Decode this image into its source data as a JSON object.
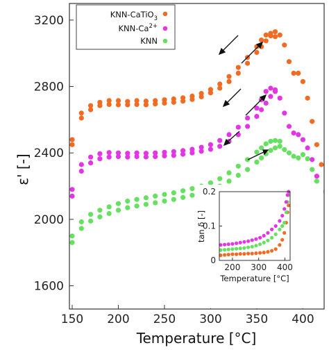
{
  "chart_data": [
    {
      "type": "scatter",
      "xlabel": "Temperature [°C]",
      "ylabel": "ε' [-]",
      "xlim": [
        147,
        423
      ],
      "ylim": [
        1460,
        3300
      ],
      "xticks": [
        "150",
        "200",
        "250",
        "300",
        "350",
        "400"
      ],
      "yticks": [
        "1600",
        "2000",
        "2400",
        "2800",
        "3200"
      ],
      "grid": false,
      "legend_position": "top-left",
      "series": [
        {
          "name": "KNN-CaTiO",
          "name_sub": "3",
          "name_sup": "",
          "color": "#f26b22",
          "heating": [
            [
              150,
              2450
            ],
            [
              160,
              2610
            ],
            [
              170,
              2660
            ],
            [
              180,
              2685
            ],
            [
              190,
              2692
            ],
            [
              200,
              2690
            ],
            [
              210,
              2690
            ],
            [
              220,
              2692
            ],
            [
              230,
              2690
            ],
            [
              240,
              2695
            ],
            [
              250,
              2700
            ],
            [
              260,
              2705
            ],
            [
              270,
              2712
            ],
            [
              280,
              2722
            ],
            [
              290,
              2738
            ],
            [
              300,
              2762
            ],
            [
              310,
              2790
            ],
            [
              320,
              2830
            ],
            [
              330,
              2880
            ],
            [
              340,
              2940
            ],
            [
              350,
              3005
            ],
            [
              355,
              3040
            ],
            [
              360,
              3075
            ],
            [
              365,
              3105
            ],
            [
              370,
              3130
            ],
            [
              375,
              3110
            ],
            [
              380,
              3050
            ],
            [
              385,
              2950
            ],
            [
              390,
              2880
            ],
            [
              395,
              2880
            ],
            [
              400,
              2830
            ],
            [
              405,
              2730
            ],
            [
              410,
              2590
            ],
            [
              415,
              2450
            ],
            [
              420,
              2330
            ]
          ],
          "cooling": [
            [
              150,
              2480
            ],
            [
              160,
              2640
            ],
            [
              170,
              2685
            ],
            [
              180,
              2705
            ],
            [
              190,
              2715
            ],
            [
              200,
              2715
            ],
            [
              210,
              2710
            ],
            [
              220,
              2715
            ],
            [
              230,
              2712
            ],
            [
              240,
              2715
            ],
            [
              250,
              2720
            ],
            [
              260,
              2725
            ],
            [
              270,
              2732
            ],
            [
              280,
              2742
            ],
            [
              290,
              2758
            ],
            [
              300,
              2782
            ],
            [
              310,
              2815
            ],
            [
              320,
              2860
            ],
            [
              330,
              2915
            ],
            [
              340,
              2975
            ],
            [
              350,
              3040
            ],
            [
              355,
              3080
            ],
            [
              360,
              3110
            ],
            [
              365,
              3120
            ],
            [
              370,
              3100
            ]
          ]
        },
        {
          "name": "KNN-Ca",
          "name_sub": "",
          "name_sup": "2+",
          "color": "#e335e6",
          "heating": [
            [
              150,
              2140
            ],
            [
              160,
              2290
            ],
            [
              170,
              2340
            ],
            [
              180,
              2365
            ],
            [
              190,
              2375
            ],
            [
              200,
              2378
            ],
            [
              210,
              2375
            ],
            [
              220,
              2378
            ],
            [
              230,
              2376
            ],
            [
              240,
              2378
            ],
            [
              250,
              2382
            ],
            [
              260,
              2385
            ],
            [
              270,
              2392
            ],
            [
              280,
              2400
            ],
            [
              290,
              2410
            ],
            [
              300,
              2422
            ],
            [
              310,
              2440
            ],
            [
              320,
              2470
            ],
            [
              330,
              2510
            ],
            [
              340,
              2560
            ],
            [
              350,
              2620
            ],
            [
              355,
              2660
            ],
            [
              360,
              2700
            ],
            [
              365,
              2740
            ],
            [
              370,
              2770
            ],
            [
              375,
              2730
            ],
            [
              380,
              2640
            ],
            [
              385,
              2560
            ],
            [
              390,
              2520
            ],
            [
              395,
              2510
            ],
            [
              400,
              2480
            ],
            [
              405,
              2430
            ],
            [
              410,
              2360
            ],
            [
              415,
              2260
            ],
            [
              420,
              2170
            ]
          ],
          "cooling": [
            [
              150,
              2180
            ],
            [
              160,
              2330
            ],
            [
              170,
              2375
            ],
            [
              180,
              2395
            ],
            [
              190,
              2402
            ],
            [
              200,
              2400
            ],
            [
              210,
              2398
            ],
            [
              220,
              2400
            ],
            [
              230,
              2398
            ],
            [
              240,
              2400
            ],
            [
              250,
              2404
            ],
            [
              260,
              2408
            ],
            [
              270,
              2414
            ],
            [
              280,
              2422
            ],
            [
              290,
              2434
            ],
            [
              300,
              2450
            ],
            [
              310,
              2475
            ],
            [
              320,
              2510
            ],
            [
              330,
              2555
            ],
            [
              340,
              2610
            ],
            [
              350,
              2670
            ],
            [
              355,
              2720
            ],
            [
              360,
              2770
            ],
            [
              365,
              2790
            ],
            [
              370,
              2780
            ]
          ]
        },
        {
          "name": "KNN",
          "name_sub": "",
          "name_sup": "",
          "color": "#66e060",
          "heating": [
            [
              150,
              1860
            ],
            [
              160,
              1945
            ],
            [
              170,
              1990
            ],
            [
              180,
              2015
            ],
            [
              190,
              2035
            ],
            [
              200,
              2055
            ],
            [
              210,
              2070
            ],
            [
              220,
              2080
            ],
            [
              230,
              2090
            ],
            [
              240,
              2100
            ],
            [
              250,
              2110
            ],
            [
              260,
              2120
            ],
            [
              270,
              2132
            ],
            [
              280,
              2145
            ],
            [
              290,
              2160
            ],
            [
              300,
              2178
            ],
            [
              310,
              2200
            ],
            [
              320,
              2230
            ],
            [
              330,
              2265
            ],
            [
              340,
              2300
            ],
            [
              350,
              2345
            ],
            [
              355,
              2370
            ],
            [
              360,
              2395
            ],
            [
              365,
              2415
            ],
            [
              370,
              2430
            ],
            [
              375,
              2440
            ],
            [
              380,
              2420
            ],
            [
              385,
              2400
            ],
            [
              390,
              2380
            ],
            [
              395,
              2370
            ],
            [
              400,
              2390
            ],
            [
              405,
              2365
            ],
            [
              410,
              2300
            ],
            [
              415,
              2230
            ],
            [
              420,
              2160
            ]
          ],
          "cooling": [
            [
              150,
              1900
            ],
            [
              160,
              1985
            ],
            [
              170,
              2030
            ],
            [
              180,
              2055
            ],
            [
              190,
              2075
            ],
            [
              200,
              2095
            ],
            [
              210,
              2110
            ],
            [
              220,
              2120
            ],
            [
              230,
              2130
            ],
            [
              240,
              2140
            ],
            [
              250,
              2150
            ],
            [
              260,
              2160
            ],
            [
              270,
              2172
            ],
            [
              280,
              2185
            ],
            [
              290,
              2200
            ],
            [
              300,
              2220
            ],
            [
              310,
              2245
            ],
            [
              320,
              2280
            ],
            [
              330,
              2320
            ],
            [
              340,
              2360
            ],
            [
              350,
              2405
            ],
            [
              355,
              2430
            ],
            [
              360,
              2455
            ],
            [
              365,
              2470
            ],
            [
              370,
              2475
            ],
            [
              375,
              2470
            ]
          ]
        }
      ]
    },
    {
      "type": "scatter",
      "inset": true,
      "xlabel": "Temperature [°C]",
      "ylabel": "tan δ [-]",
      "xlim": [
        150,
        420
      ],
      "ylim": [
        0,
        0.2
      ],
      "xticks": [
        "200",
        "300",
        "400"
      ],
      "yticks": [
        "0",
        "0.1",
        "0.2"
      ],
      "series": [
        {
          "name": "KNN-CaTiO3",
          "color": "#f26b22",
          "points": [
            [
              155,
              0.015
            ],
            [
              170,
              0.016
            ],
            [
              185,
              0.017
            ],
            [
              200,
              0.018
            ],
            [
              215,
              0.018
            ],
            [
              230,
              0.019
            ],
            [
              245,
              0.019
            ],
            [
              260,
              0.02
            ],
            [
              275,
              0.02
            ],
            [
              290,
              0.021
            ],
            [
              305,
              0.022
            ],
            [
              320,
              0.023
            ],
            [
              335,
              0.025
            ],
            [
              350,
              0.028
            ],
            [
              365,
              0.033
            ],
            [
              380,
              0.045
            ],
            [
              390,
              0.06
            ],
            [
              398,
              0.08
            ],
            [
              405,
              0.11
            ],
            [
              410,
              0.14
            ],
            [
              414,
              0.16
            ]
          ]
        },
        {
          "name": "KNN",
          "color": "#66e060",
          "points": [
            [
              155,
              0.03
            ],
            [
              170,
              0.031
            ],
            [
              185,
              0.032
            ],
            [
              200,
              0.033
            ],
            [
              215,
              0.034
            ],
            [
              230,
              0.035
            ],
            [
              245,
              0.036
            ],
            [
              260,
              0.038
            ],
            [
              275,
              0.04
            ],
            [
              290,
              0.043
            ],
            [
              305,
              0.047
            ],
            [
              320,
              0.052
            ],
            [
              335,
              0.058
            ],
            [
              350,
              0.066
            ],
            [
              365,
              0.076
            ],
            [
              380,
              0.09
            ],
            [
              390,
              0.1
            ],
            [
              398,
              0.11
            ],
            [
              405,
              0.14
            ],
            [
              410,
              0.17
            ],
            [
              414,
              0.19
            ]
          ]
        },
        {
          "name": "KNN-Ca2+",
          "color": "#e335e6",
          "points": [
            [
              155,
              0.045
            ],
            [
              170,
              0.046
            ],
            [
              185,
              0.047
            ],
            [
              200,
              0.048
            ],
            [
              215,
              0.05
            ],
            [
              230,
              0.052
            ],
            [
              245,
              0.054
            ],
            [
              260,
              0.056
            ],
            [
              275,
              0.059
            ],
            [
              290,
              0.062
            ],
            [
              305,
              0.066
            ],
            [
              320,
              0.072
            ],
            [
              335,
              0.08
            ],
            [
              350,
              0.09
            ],
            [
              365,
              0.1
            ],
            [
              380,
              0.115
            ],
            [
              390,
              0.13
            ],
            [
              398,
              0.15
            ],
            [
              405,
              0.17
            ],
            [
              410,
              0.19
            ],
            [
              414,
              0.2
            ]
          ]
        }
      ]
    }
  ]
}
